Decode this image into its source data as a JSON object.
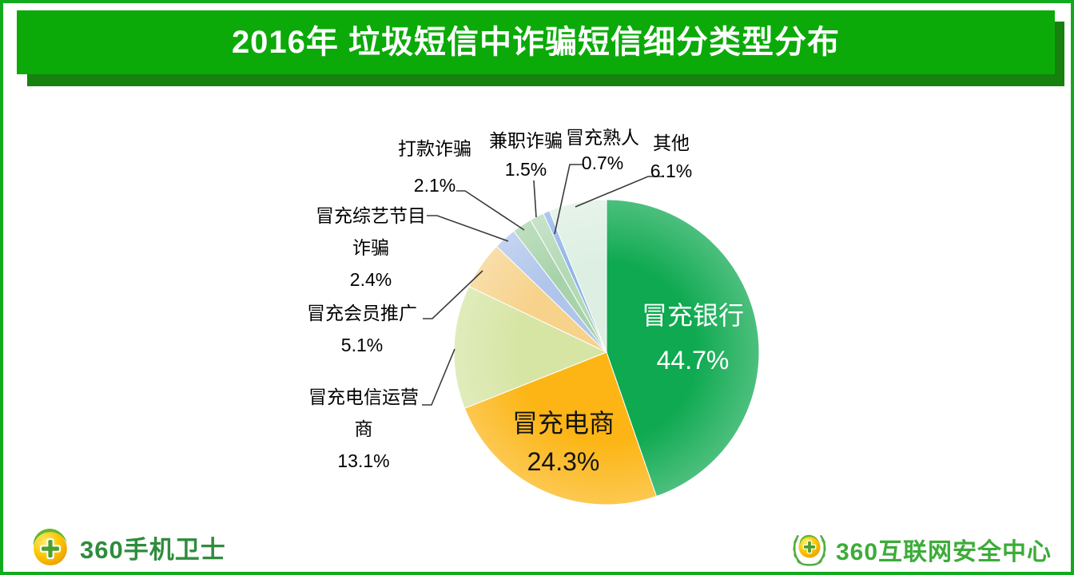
{
  "header": {
    "title": "2016年 垃圾短信中诈骗短信细分类型分布",
    "banner_color": "#0BAA09",
    "banner_shadow_color": "#16810F",
    "page_border_color": "#13AB1E",
    "title_text_color": "#FFFFFF"
  },
  "chart_data": {
    "type": "pie",
    "title": "2016年 垃圾短信中诈骗短信细分类型分布",
    "start_angle_deg": 0,
    "direction": "clockwise",
    "legend": "none",
    "label_style": "name + percent, large slices labeled inside, small slices labeled outside with leader lines",
    "slices": [
      {
        "label": "冒充银行",
        "value": 44.7,
        "pct": "44.7%",
        "color": "#0EA950",
        "label_placement": "inside",
        "label_color": "#FFFFFF"
      },
      {
        "label": "冒充电商",
        "value": 24.3,
        "pct": "24.3%",
        "color": "#FCB514",
        "label_placement": "inside",
        "label_color": "#141414"
      },
      {
        "label": "冒充电信运营商",
        "value": 13.1,
        "pct": "13.1%",
        "color": "#D6E5A4",
        "label_placement": "outside",
        "label_color": "#000000"
      },
      {
        "label": "冒充会员推广",
        "value": 5.1,
        "pct": "5.1%",
        "color": "#F7D28B",
        "label_placement": "outside",
        "label_color": "#000000"
      },
      {
        "label": "冒充综艺节目诈骗",
        "value": 2.4,
        "pct": "2.4%",
        "color": "#AFC5EB",
        "label_placement": "outside",
        "label_color": "#000000"
      },
      {
        "label": "打款诈骗",
        "value": 2.1,
        "pct": "2.1%",
        "color": "#A8D3AA",
        "label_placement": "outside",
        "label_color": "#000000"
      },
      {
        "label": "兼职诈骗",
        "value": 1.5,
        "pct": "1.5%",
        "color": "#B4D9B5",
        "label_placement": "outside",
        "label_color": "#000000"
      },
      {
        "label": "冒充熟人",
        "value": 0.7,
        "pct": "0.7%",
        "color": "#92B4EA",
        "label_placement": "outside",
        "label_color": "#000000"
      },
      {
        "label": "其他",
        "value": 6.1,
        "pct": "6.1%",
        "color": "#DDEFE2",
        "label_placement": "outside",
        "label_color": "#000000"
      }
    ]
  },
  "footer": {
    "left_logo_text": "360手机卫士",
    "left_logo_icon": "360-cross-ball-icon",
    "left_logo_text_color": "#2F8C3D",
    "right_logo_text": "360互联网安全中心",
    "right_logo_icon": "laurel-wreath-360-icon",
    "right_logo_text_color": "#3CAC39"
  }
}
